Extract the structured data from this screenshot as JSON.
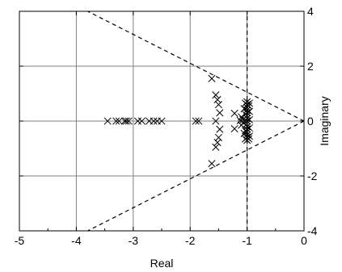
{
  "chart_data": {
    "type": "scatter",
    "xlabel": "Real",
    "ylabel": "Imaginary",
    "xlim": [
      -5,
      0
    ],
    "ylim": [
      -4,
      4
    ],
    "x_ticks": [
      -5,
      -4,
      -3,
      -2,
      -1,
      0
    ],
    "x_tick_labels": [
      "-5",
      "-4",
      "-3",
      "-2",
      "-1",
      "0"
    ],
    "y_ticks": [
      -4,
      -2,
      0,
      2,
      4
    ],
    "y_tick_labels": [
      "-4",
      "-2",
      "0",
      "2",
      "4"
    ],
    "y_axis_side": "right",
    "grid": true,
    "marker": "x",
    "colors": {
      "markers": "#000000",
      "grid": "#808080",
      "guides": "#000000"
    },
    "guide_lines": [
      {
        "name": "upper-sector-boundary",
        "style": "dashed",
        "points": [
          [
            0,
            0
          ],
          [
            -3.8,
            4.0
          ]
        ]
      },
      {
        "name": "lower-sector-boundary",
        "style": "dashed",
        "points": [
          [
            0,
            0
          ],
          [
            -3.8,
            -4.0
          ]
        ]
      },
      {
        "name": "vertical-boundary",
        "style": "dashed",
        "points": [
          [
            -1,
            -4
          ],
          [
            -1,
            4
          ]
        ]
      }
    ],
    "points": [
      [
        -3.45,
        0
      ],
      [
        -3.3,
        0
      ],
      [
        -3.25,
        0
      ],
      [
        -3.15,
        0
      ],
      [
        -3.12,
        0
      ],
      [
        -3.08,
        0
      ],
      [
        -2.92,
        0
      ],
      [
        -2.85,
        0
      ],
      [
        -2.72,
        0
      ],
      [
        -2.64,
        0
      ],
      [
        -2.58,
        0
      ],
      [
        -2.5,
        0
      ],
      [
        -1.9,
        0
      ],
      [
        -1.85,
        0
      ],
      [
        -1.55,
        0
      ],
      [
        -1.62,
        1.55
      ],
      [
        -1.62,
        -1.55
      ],
      [
        -1.55,
        0.95
      ],
      [
        -1.52,
        0.78
      ],
      [
        -1.5,
        0.6
      ],
      [
        -1.48,
        0.3
      ],
      [
        -1.55,
        -0.95
      ],
      [
        -1.52,
        -0.78
      ],
      [
        -1.5,
        -0.6
      ],
      [
        -1.48,
        -0.3
      ],
      [
        -1.22,
        0.28
      ],
      [
        -1.22,
        -0.28
      ],
      [
        -1.12,
        0.02
      ],
      [
        -1.1,
        0.15
      ],
      [
        -1.1,
        -0.15
      ],
      [
        -1.07,
        0.05
      ],
      [
        -1.06,
        -0.05
      ],
      [
        -1.05,
        0.45
      ],
      [
        -1.05,
        -0.45
      ],
      [
        -1.0,
        0.7
      ],
      [
        -1.0,
        0.6
      ],
      [
        -1.0,
        0.5
      ],
      [
        -1.0,
        0.4
      ],
      [
        -1.0,
        0.3
      ],
      [
        -1.0,
        0.2
      ],
      [
        -1.0,
        0.1
      ],
      [
        -1.0,
        0.0
      ],
      [
        -1.0,
        -0.1
      ],
      [
        -1.0,
        -0.2
      ],
      [
        -1.0,
        -0.3
      ],
      [
        -1.0,
        -0.4
      ],
      [
        -1.0,
        -0.5
      ],
      [
        -1.0,
        -0.6
      ],
      [
        -1.0,
        -0.7
      ],
      [
        -0.96,
        0.65
      ],
      [
        -0.96,
        0.35
      ],
      [
        -0.96,
        0.05
      ],
      [
        -0.96,
        -0.25
      ],
      [
        -0.96,
        -0.55
      ],
      [
        -0.97,
        0.55
      ],
      [
        -0.97,
        -0.65
      ],
      [
        -1.03,
        0.65
      ],
      [
        -1.03,
        0.25
      ],
      [
        -1.03,
        -0.35
      ],
      [
        -1.03,
        -0.65
      ]
    ]
  }
}
